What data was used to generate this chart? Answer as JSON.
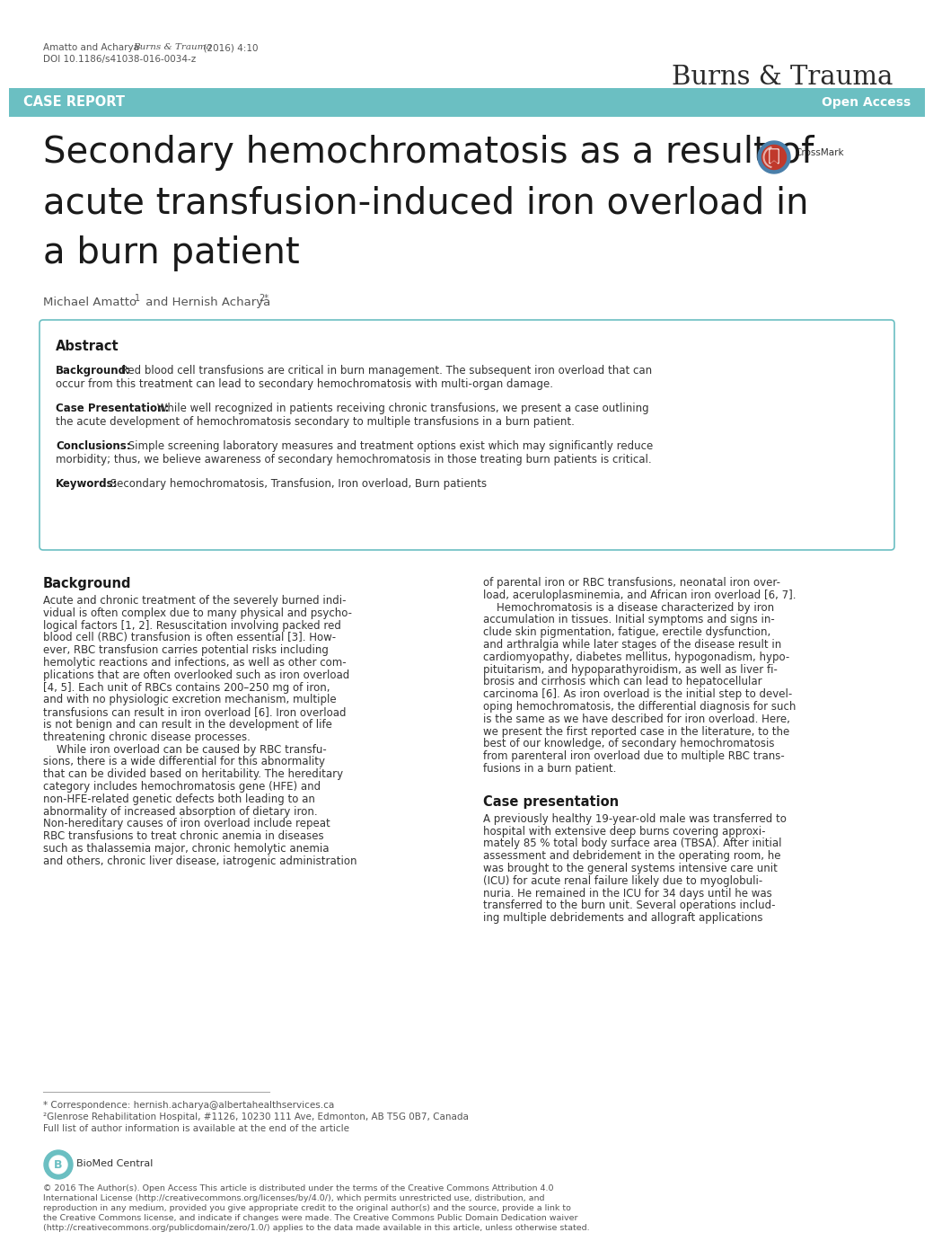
{
  "background_color": "#ffffff",
  "banner_color": "#6bbfc2",
  "banner_text": "CASE REPORT",
  "banner_right_text": "Open Access",
  "journal_title": "Burns & Trauma",
  "article_title_line1": "Secondary hemochromatosis as a result of",
  "article_title_line2": "acute transfusion-induced iron overload in",
  "article_title_line3": "a burn patient",
  "author_line": "Michael Amatto",
  "author_super1": "1",
  "author_mid": " and Hernish Acharya",
  "author_super2": "2*",
  "meta_line1_a": "Amatto and Acharya ",
  "meta_line1_b": "Burns & Trauma",
  "meta_line1_c": "  (2016) 4:10",
  "meta_line2": "DOI 10.1186/s41038-016-0034-z",
  "abstract_title": "Abstract",
  "abs_bg_label": "Background:",
  "abs_bg_text1": " Red blood cell transfusions are critical in burn management. The subsequent iron overload that can",
  "abs_bg_text2": "occur from this treatment can lead to secondary hemochromatosis with multi-organ damage.",
  "abs_cp_label": "Case Presentation:",
  "abs_cp_text1": " While well recognized in patients receiving chronic transfusions, we present a case outlining",
  "abs_cp_text2": "the acute development of hemochromatosis secondary to multiple transfusions in a burn patient.",
  "abs_cl_label": "Conclusions:",
  "abs_cl_text1": " Simple screening laboratory measures and treatment options exist which may significantly reduce",
  "abs_cl_text2": "morbidity; thus, we believe awareness of secondary hemochromatosis in those treating burn patients is critical.",
  "abs_kw_label": "Keywords:",
  "abs_kw_text": " Secondary hemochromatosis, Transfusion, Iron overload, Burn patients",
  "bg_section_title": "Background",
  "bg_col1_lines": [
    "Acute and chronic treatment of the severely burned indi-",
    "vidual is often complex due to many physical and psycho-",
    "logical factors [1, 2]. Resuscitation involving packed red",
    "blood cell (RBC) transfusion is often essential [3]. How-",
    "ever, RBC transfusion carries potential risks including",
    "hemolytic reactions and infections, as well as other com-",
    "plications that are often overlooked such as iron overload",
    "[4, 5]. Each unit of RBCs contains 200–250 mg of iron,",
    "and with no physiologic excretion mechanism, multiple",
    "transfusions can result in iron overload [6]. Iron overload",
    "is not benign and can result in the development of life",
    "threatening chronic disease processes.",
    "    While iron overload can be caused by RBC transfu-",
    "sions, there is a wide differential for this abnormality",
    "that can be divided based on heritability. The hereditary",
    "category includes hemochromatosis gene (HFE) and",
    "non-HFE-related genetic defects both leading to an",
    "abnormality of increased absorption of dietary iron.",
    "Non-hereditary causes of iron overload include repeat",
    "RBC transfusions to treat chronic anemia in diseases",
    "such as thalassemia major, chronic hemolytic anemia",
    "and others, chronic liver disease, iatrogenic administration"
  ],
  "bg_col2_lines": [
    "of parental iron or RBC transfusions, neonatal iron over-",
    "load, aceruloplasminemia, and African iron overload [6, 7].",
    "    Hemochromatosis is a disease characterized by iron",
    "accumulation in tissues. Initial symptoms and signs in-",
    "clude skin pigmentation, fatigue, erectile dysfunction,",
    "and arthralgia while later stages of the disease result in",
    "cardiomyopathy, diabetes mellitus, hypogonadism, hypo-",
    "pituitarism, and hypoparathyroidism, as well as liver fi-",
    "brosis and cirrhosis which can lead to hepatocellular",
    "carcinoma [6]. As iron overload is the initial step to devel-",
    "oping hemochromatosis, the differential diagnosis for such",
    "is the same as we have described for iron overload. Here,",
    "we present the first reported case in the literature, to the",
    "best of our knowledge, of secondary hemochromatosis",
    "from parenteral iron overload due to multiple RBC trans-",
    "fusions in a burn patient."
  ],
  "case_section_title": "Case presentation",
  "case_col2_lines": [
    "A previously healthy 19-year-old male was transferred to",
    "hospital with extensive deep burns covering approxi-",
    "mately 85 % total body surface area (TBSA). After initial",
    "assessment and debridement in the operating room, he",
    "was brought to the general systems intensive care unit",
    "(ICU) for acute renal failure likely due to myoglobuli-",
    "nuria. He remained in the ICU for 34 days until he was",
    "transferred to the burn unit. Several operations includ-",
    "ing multiple debridements and allograft applications"
  ],
  "footer_line1": "* Correspondence: hernish.acharya@albertahealthservices.ca",
  "footer_line2": "²Glenrose Rehabilitation Hospital, #1126, 10230 111 Ave, Edmonton, AB T5G 0B7, Canada",
  "footer_line3": "Full list of author information is available at the end of the article",
  "copyright_lines": [
    "© 2016 The Author(s). Open Access This article is distributed under the terms of the Creative Commons Attribution 4.0",
    "International License (http://creativecommons.org/licenses/by/4.0/), which permits unrestricted use, distribution, and",
    "reproduction in any medium, provided you give appropriate credit to the original author(s) and the source, provide a link to",
    "the Creative Commons license, and indicate if changes were made. The Creative Commons Public Domain Dedication waiver",
    "(http://creativecommons.org/publicdomain/zero/1.0/) applies to the data made available in this article, unless otherwise stated."
  ],
  "abstract_border_color": "#6bbfc2",
  "text_dark": "#1a1a1a",
  "text_body": "#333333",
  "text_meta": "#555555"
}
